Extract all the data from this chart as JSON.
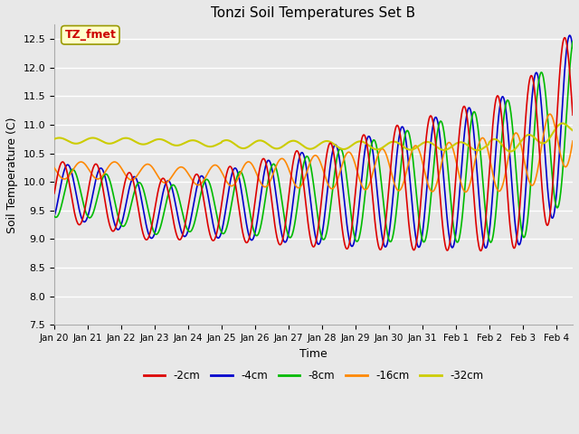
{
  "title": "Tonzi Soil Temperatures Set B",
  "xlabel": "Time",
  "ylabel": "Soil Temperature (C)",
  "ylim": [
    7.5,
    12.75
  ],
  "legend_labels": [
    "-2cm",
    "-4cm",
    "-8cm",
    "-16cm",
    "-32cm"
  ],
  "legend_colors": [
    "#dd0000",
    "#0000cc",
    "#00bb00",
    "#ff8800",
    "#cccc00"
  ],
  "annotation_text": "TZ_fmet",
  "annotation_color": "#cc0000",
  "annotation_bg": "#ffffcc",
  "annotation_border": "#999900",
  "bg_color": "#e8e8e8",
  "x_tick_labels": [
    "Jan 20",
    "Jan 21",
    "Jan 22",
    "Jan 23",
    "Jan 24",
    "Jan 25",
    "Jan 26",
    "Jan 27",
    "Jan 28",
    "Jan 29",
    "Jan 30",
    "Jan 31",
    "Feb 1",
    "Feb 2",
    "Feb 3",
    "Feb 4"
  ],
  "num_points": 1000
}
